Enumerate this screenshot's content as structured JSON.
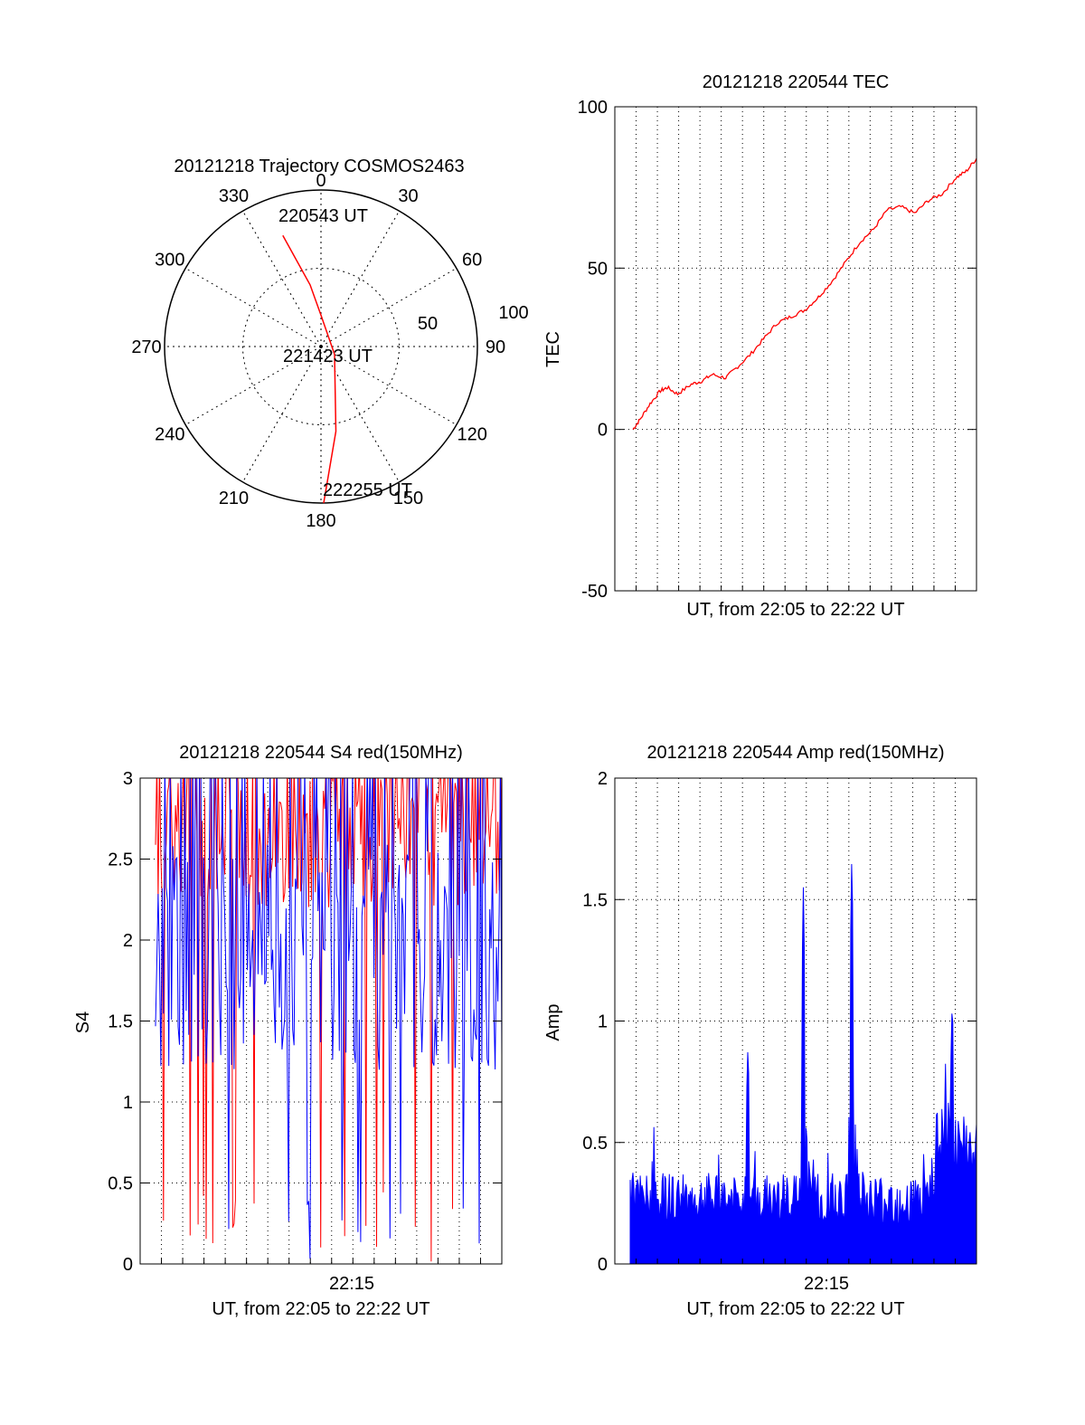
{
  "chart_data": [
    {
      "type": "polar",
      "title": "20121218 Trajectory COSMOS2463",
      "angle_labels": [
        "0",
        "30",
        "60",
        "90",
        "120",
        "150",
        "180",
        "210",
        "240",
        "270",
        "300",
        "330"
      ],
      "radius_labels": [
        "50",
        "100"
      ],
      "rlim": [
        0,
        100
      ],
      "grid": true,
      "series": [
        {
          "color": "#ff0000",
          "points": [
            [
              -19,
              75
            ],
            [
              -10,
              40
            ],
            [
              0,
              20
            ],
            [
              120,
              10
            ],
            [
              170,
              55
            ],
            [
              179,
              100
            ]
          ]
        }
      ],
      "annotations": [
        "220543 UT",
        "221423 UT",
        "222255 UT"
      ]
    },
    {
      "type": "line",
      "title": "20121218 220544 TEC",
      "xlabel": "UT, from 22:05 to 22:22 UT",
      "ylabel": "TEC",
      "ylim": [
        -50,
        100
      ],
      "yticks": [
        "-50",
        "0",
        "50",
        "100"
      ],
      "grid": true,
      "series": [
        {
          "color": "#ff0000",
          "x": [
            0.0,
            0.02,
            0.05,
            0.08,
            0.1,
            0.13,
            0.17,
            0.2,
            0.23,
            0.27,
            0.3,
            0.34,
            0.38,
            0.42,
            0.46,
            0.5,
            0.54,
            0.58,
            0.62,
            0.66,
            0.7,
            0.74,
            0.78,
            0.82,
            0.86,
            0.9,
            0.94,
            0.97,
            1.0
          ],
          "y": [
            0,
            3,
            8,
            12,
            13,
            11,
            14,
            15,
            17,
            16,
            19,
            23,
            28,
            33,
            35,
            37,
            41,
            46,
            52,
            58,
            62,
            68,
            69,
            67,
            71,
            73,
            78,
            80,
            84
          ]
        }
      ]
    },
    {
      "type": "line",
      "title": "20121218 220544 S4 red(150MHz)",
      "xlabel": "UT, from 22:05 to 22:22 UT",
      "ylabel": "S4",
      "ylim": [
        0,
        3
      ],
      "yticks": [
        "0",
        "0.5",
        "1",
        "1.5",
        "2",
        "2.5",
        "3"
      ],
      "xticks": [
        "22:15"
      ],
      "grid": true,
      "series": [
        {
          "color": "#ff0000",
          "style": "noisy",
          "base": 2.6,
          "spread": 0.4
        },
        {
          "color": "#0000ff",
          "style": "noisy",
          "base": 1.9,
          "spread": 0.7
        }
      ]
    },
    {
      "type": "bar",
      "title": "20121218 220544 Amp red(150MHz)",
      "xlabel": "UT, from 22:05 to 22:22 UT",
      "ylabel": "Amp",
      "ylim": [
        0,
        2
      ],
      "yticks": [
        "0",
        "0.5",
        "1",
        "1.5",
        "2"
      ],
      "xticks": [
        "22:15"
      ],
      "grid": true,
      "series": [
        {
          "color": "#0000ff",
          "style": "noisy",
          "base": 0.25,
          "peaks": [
            [
              0.34,
              0.9
            ],
            [
              0.5,
              1.55
            ],
            [
              0.64,
              1.7
            ],
            [
              0.93,
              1.1
            ]
          ]
        }
      ]
    }
  ]
}
